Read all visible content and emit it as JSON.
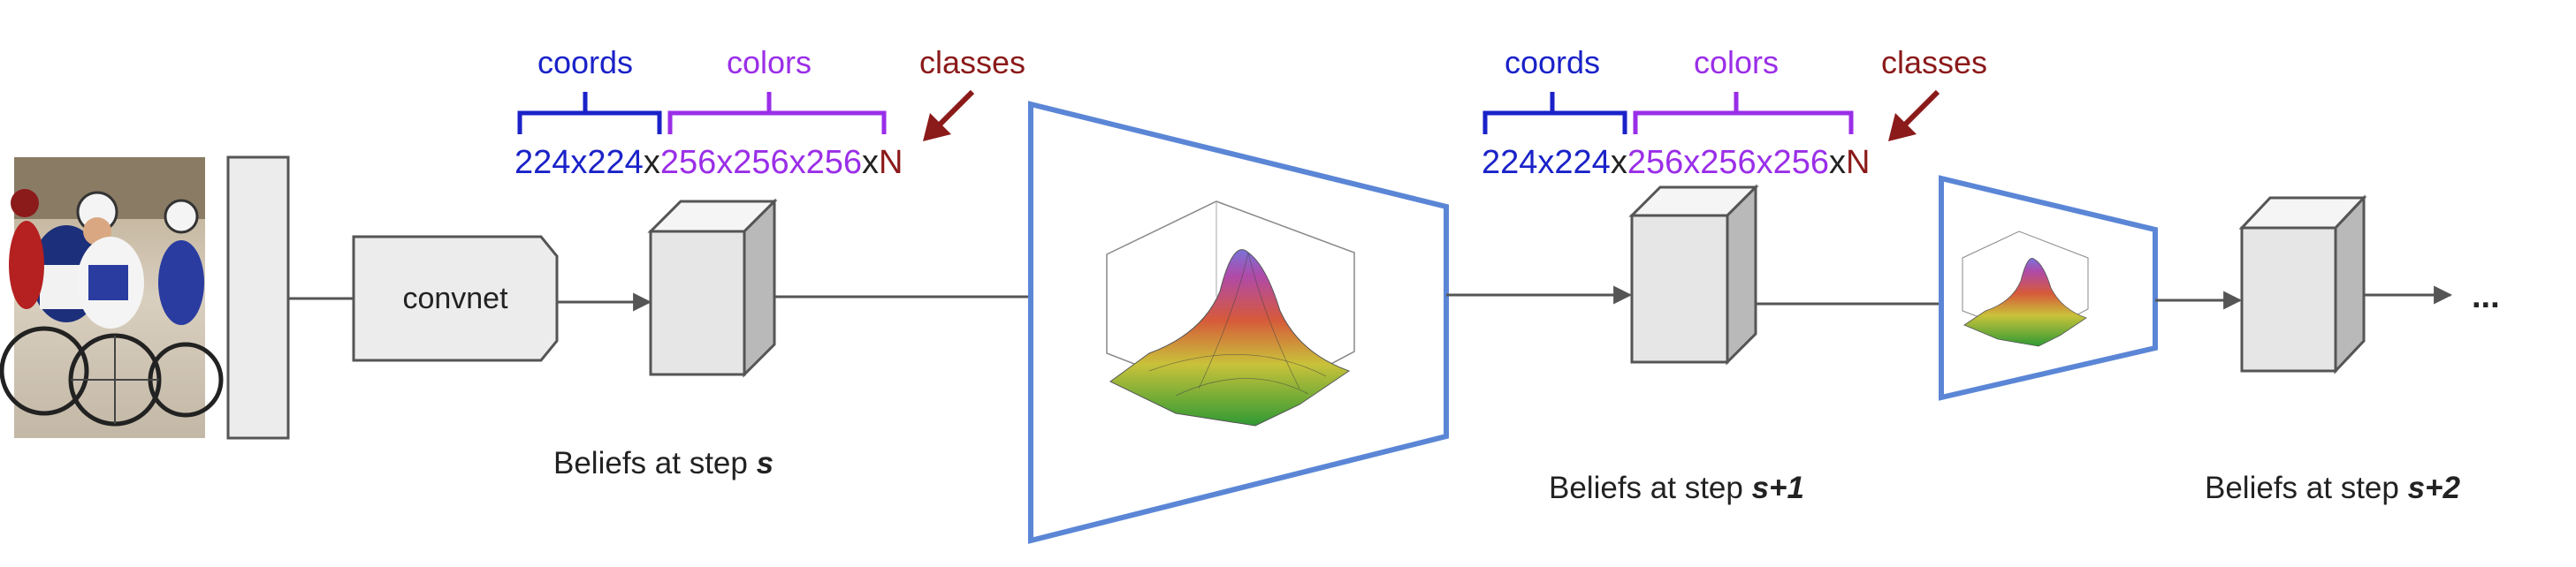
{
  "stage1": {
    "label_coords": "coords",
    "label_colors": "colors",
    "label_classes": "classes",
    "dims_coords": "224x224",
    "dims_x1": "x",
    "dims_colors": "256x256x256",
    "dims_x2": "x",
    "dims_classes": "N",
    "caption_prefix": "Beliefs at step ",
    "caption_step": "s"
  },
  "stage2": {
    "label_coords": "coords",
    "label_colors": "colors",
    "label_classes": "classes",
    "dims_coords": "224x224",
    "dims_x1": "x",
    "dims_colors": "256x256x256",
    "dims_x2": "x",
    "dims_classes": "N",
    "caption_prefix": "Beliefs at step ",
    "caption_step": "s+1"
  },
  "stage3": {
    "caption_prefix": "Beliefs at step ",
    "caption_step": "s+2"
  },
  "convnet_label": "convnet",
  "continuation": "...",
  "colors": {
    "coords": "#1a22c8",
    "colors": "#9a2ee8",
    "classes": "#8b1a1a",
    "funnel": "#5b86d6",
    "box_fill": "#ececec",
    "box_stroke": "#555555",
    "line": "#555555"
  }
}
